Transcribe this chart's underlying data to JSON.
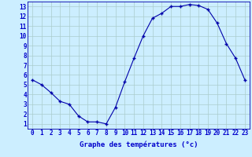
{
  "hours": [
    0,
    1,
    2,
    3,
    4,
    5,
    6,
    7,
    8,
    9,
    10,
    11,
    12,
    13,
    14,
    15,
    16,
    17,
    18,
    19,
    20,
    21,
    22,
    23
  ],
  "temperatures": [
    5.5,
    5.0,
    4.2,
    3.3,
    3.0,
    1.8,
    1.2,
    1.2,
    1.0,
    2.7,
    5.3,
    7.7,
    10.0,
    11.8,
    12.3,
    13.0,
    13.0,
    13.2,
    13.1,
    12.7,
    11.3,
    9.2,
    7.7,
    5.5
  ],
  "xlim": [
    -0.5,
    23.5
  ],
  "ylim": [
    0.5,
    13.5
  ],
  "yticks": [
    1,
    2,
    3,
    4,
    5,
    6,
    7,
    8,
    9,
    10,
    11,
    12,
    13
  ],
  "xticks": [
    0,
    1,
    2,
    3,
    4,
    5,
    6,
    7,
    8,
    9,
    10,
    11,
    12,
    13,
    14,
    15,
    16,
    17,
    18,
    19,
    20,
    21,
    22,
    23
  ],
  "xlabel": "Graphe des températures (°c)",
  "line_color": "#0000aa",
  "marker": "+",
  "background_color": "#cceeff",
  "grid_color": "#aacccc",
  "axis_label_color": "#0000cc",
  "tick_color": "#0000cc",
  "xlabel_fontsize": 6.5,
  "tick_fontsize": 5.5
}
